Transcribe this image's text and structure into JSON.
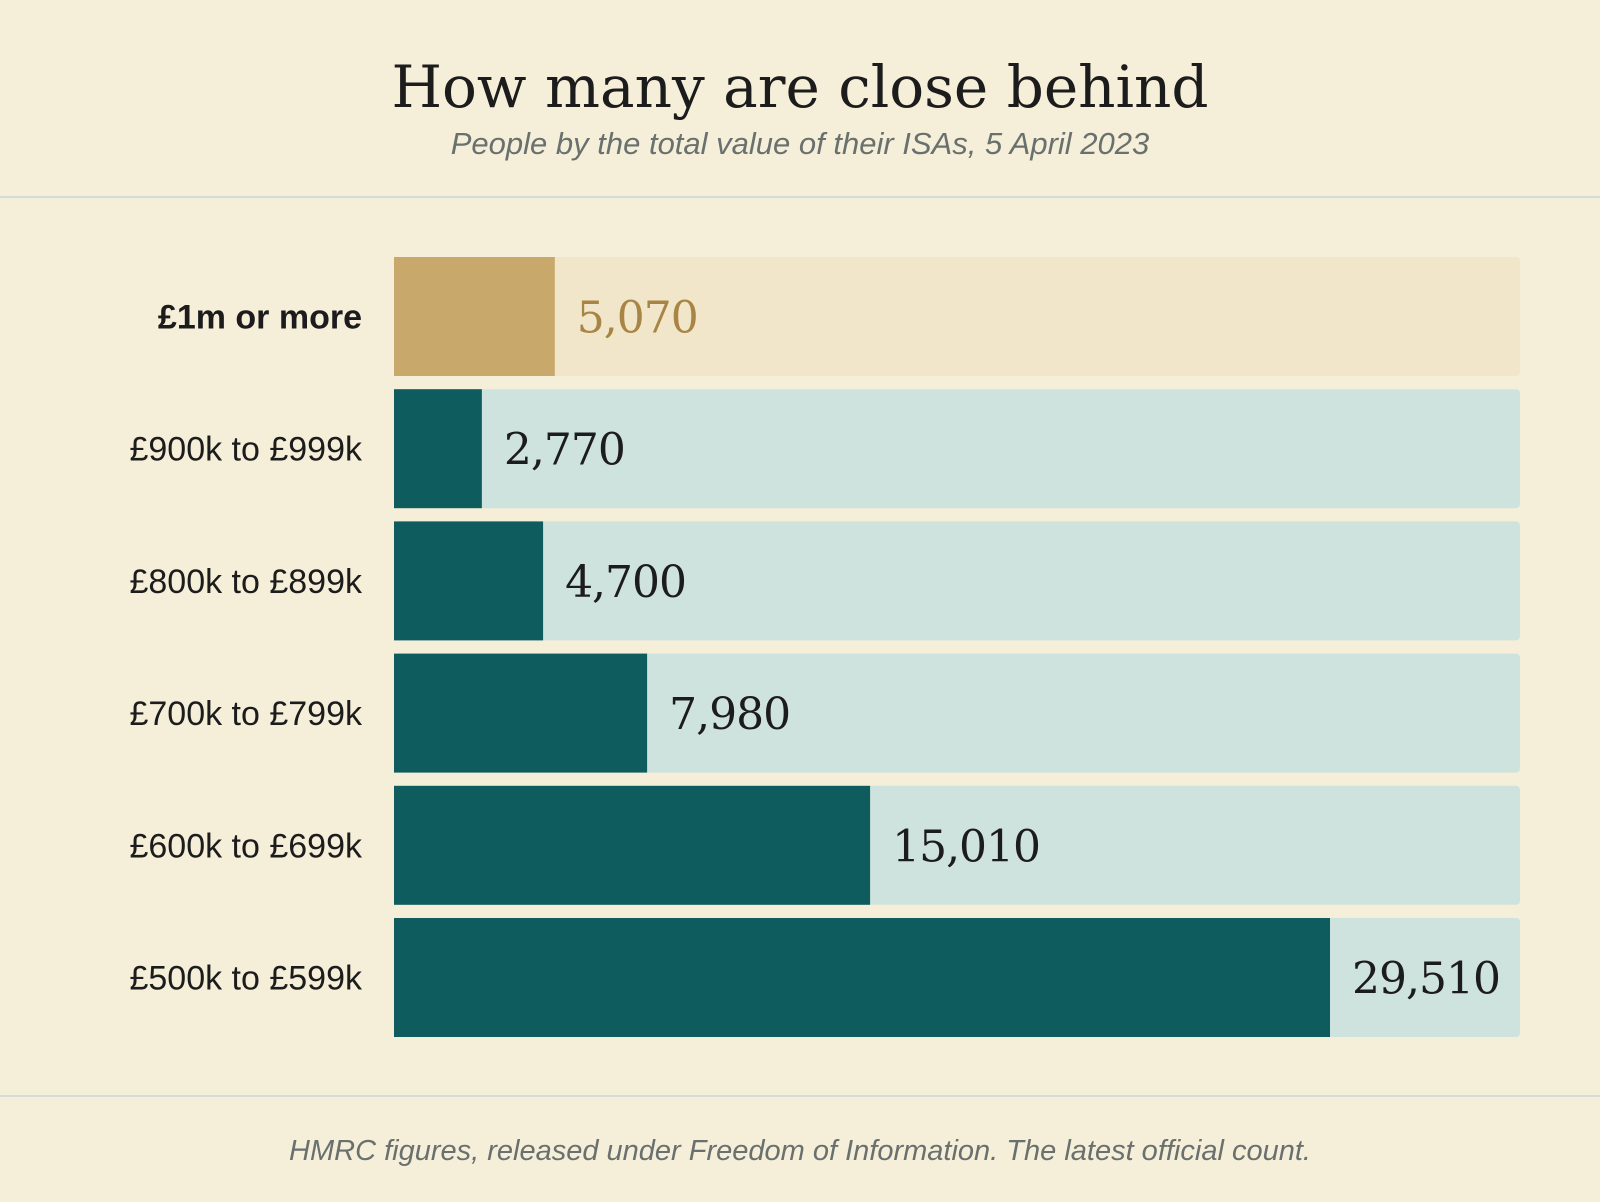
{
  "title": "How many are close behind",
  "subtitle": "People by the total value of their ISAs, 5 April 2023",
  "source": "HMRC figures, released under Freedom of Information. The latest official count.",
  "colors": {
    "background": "#f5eed9",
    "bar": "#0f5c5e",
    "track": "#cfe3de",
    "highlight_bar": "#c9a86b",
    "highlight_track": "#f2e6ca",
    "highlight_text": "#a88545",
    "text": "#1c1c1c",
    "muted": "#69706d"
  },
  "chart_data": {
    "type": "bar",
    "orientation": "horizontal",
    "categories": [
      "£1m or more",
      "£900k to £999k",
      "£800k to £899k",
      "£700k to £799k",
      "£600k to £699k",
      "£500k to £599k"
    ],
    "values": [
      5070,
      2770,
      4700,
      7980,
      15010,
      29510
    ],
    "value_labels": [
      "5,070",
      "2,770",
      "4,700",
      "7,980",
      "15,010",
      "29,510"
    ],
    "highlight_index": 0,
    "xlim": [
      0,
      35500
    ],
    "title": "How many are close behind",
    "subtitle": "People by the total value of their ISAs, 5 April 2023",
    "xlabel": "",
    "ylabel": "",
    "grid": false,
    "legend": "none"
  }
}
